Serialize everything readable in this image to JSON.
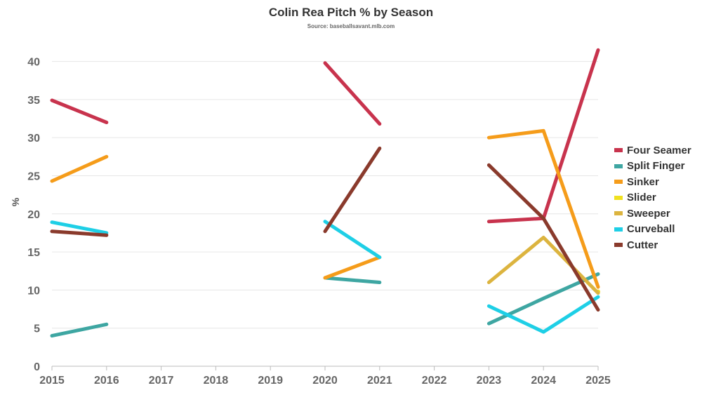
{
  "chart_data": {
    "type": "line",
    "title": "Colin Rea Pitch % by Season",
    "subtitle": "Source: baseballsavant.mlb.com",
    "xlabel": "",
    "ylabel": "%",
    "x": [
      "2015",
      "2016",
      "2017",
      "2018",
      "2019",
      "2020",
      "2021",
      "2022",
      "2023",
      "2024",
      "2025"
    ],
    "ylim": [
      0,
      43
    ],
    "yticks": [
      "0",
      "5",
      "10",
      "15",
      "20",
      "25",
      "30",
      "35",
      "40"
    ],
    "grid": true,
    "legend_position": "right",
    "series": [
      {
        "name": "Four Seamer",
        "color": "#c8334d",
        "values": [
          34.9,
          32.0,
          null,
          null,
          null,
          39.8,
          31.8,
          null,
          19.0,
          19.4,
          41.5
        ]
      },
      {
        "name": "Split Finger",
        "color": "#3ea6a2",
        "values": [
          4.0,
          5.5,
          null,
          null,
          null,
          11.6,
          11.0,
          null,
          5.6,
          8.9,
          12.1
        ]
      },
      {
        "name": "Sinker",
        "color": "#f59c1a",
        "values": [
          24.3,
          27.5,
          null,
          null,
          null,
          11.6,
          14.3,
          null,
          30.0,
          30.9,
          10.4
        ]
      },
      {
        "name": "Slider",
        "color": "#f0e11f",
        "values": [
          null,
          null,
          null,
          null,
          null,
          null,
          null,
          null,
          null,
          null,
          9.8
        ]
      },
      {
        "name": "Sweeper",
        "color": "#dcb43f",
        "values": [
          null,
          null,
          null,
          null,
          null,
          null,
          null,
          null,
          11.0,
          16.9,
          9.6
        ]
      },
      {
        "name": "Curveball",
        "color": "#1ecfe6",
        "values": [
          18.9,
          17.5,
          null,
          null,
          null,
          19.0,
          14.3,
          null,
          7.9,
          4.5,
          9.1
        ]
      },
      {
        "name": "Cutter",
        "color": "#8a3a2c",
        "values": [
          17.7,
          17.2,
          null,
          null,
          null,
          17.7,
          28.6,
          null,
          26.4,
          19.4,
          7.4
        ]
      }
    ]
  }
}
